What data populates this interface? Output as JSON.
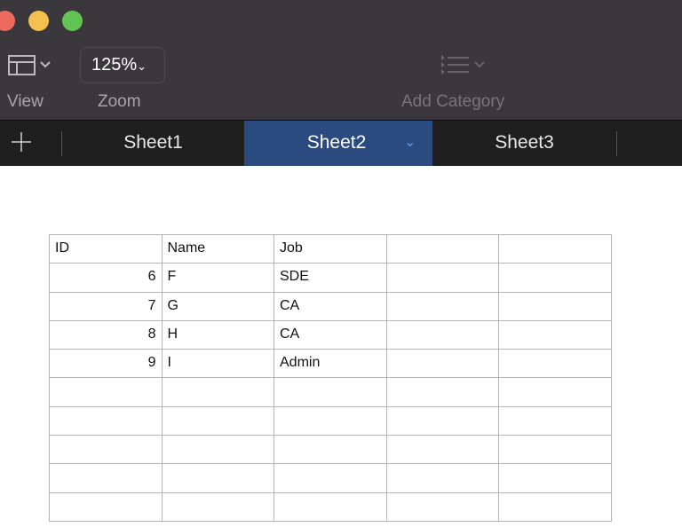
{
  "window": {
    "controls": {
      "close_color": "#ed6a5e",
      "minimize_color": "#f5bf4f",
      "zoom_color": "#61c554"
    }
  },
  "toolbar": {
    "view_label": "View",
    "zoom_value": "125%",
    "zoom_label": "Zoom",
    "add_category_label": "Add Category"
  },
  "tabs": {
    "add_icon": "plus-icon",
    "items": [
      {
        "label": "Sheet1"
      },
      {
        "label": "Sheet2",
        "active": true
      },
      {
        "label": "Sheet3"
      }
    ],
    "active_color": "#2a4a80"
  },
  "table": {
    "headers": [
      "ID",
      "Name",
      "Job",
      "",
      ""
    ],
    "rows": [
      [
        "6",
        "F",
        "SDE",
        "",
        ""
      ],
      [
        "7",
        "G",
        "CA",
        "",
        ""
      ],
      [
        "8",
        "H",
        "CA",
        "",
        ""
      ],
      [
        "9",
        "I",
        "Admin",
        "",
        ""
      ],
      [
        "",
        "",
        "",
        "",
        ""
      ],
      [
        "",
        "",
        "",
        "",
        ""
      ],
      [
        "",
        "",
        "",
        "",
        ""
      ],
      [
        "",
        "",
        "",
        "",
        ""
      ],
      [
        "",
        "",
        "",
        "",
        ""
      ]
    ]
  }
}
